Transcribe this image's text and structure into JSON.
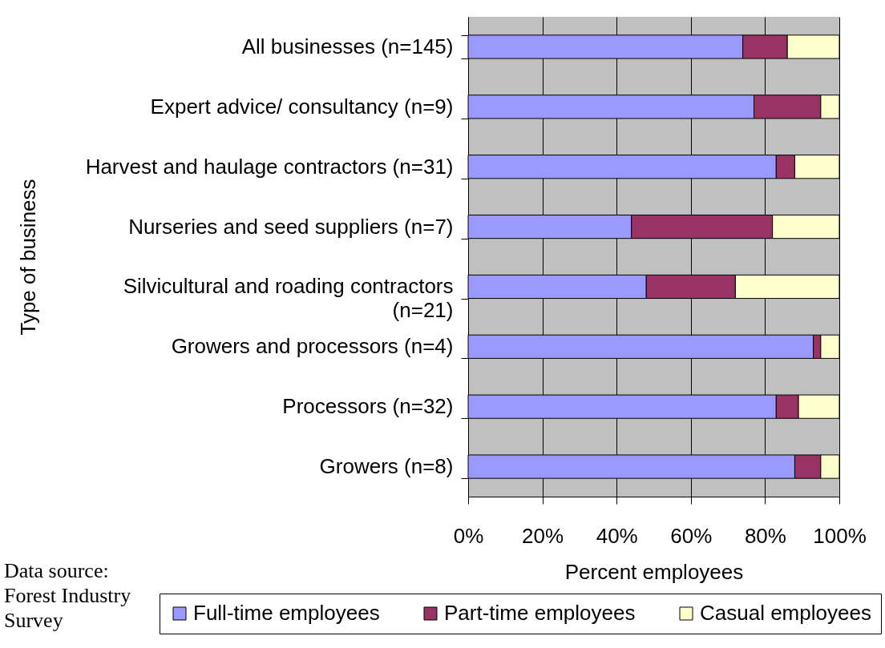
{
  "chart_data": {
    "type": "bar",
    "orientation": "horizontal",
    "stacked": true,
    "ylabel": "Type of business",
    "xlabel": "Percent employees",
    "categories": [
      "All businesses (n=145)",
      "Expert advice/ consultancy (n=9)",
      "Harvest and haulage contractors (n=31)",
      "Nurseries and seed suppliers (n=7)",
      "Silvicultural and roading contractors (n=21)",
      "Growers and processors (n=4)",
      "Processors (n=32)",
      "Growers (n=8)"
    ],
    "series": [
      {
        "name": "Full-time employees",
        "color": "#9999ff",
        "values": [
          74,
          77,
          83,
          44,
          48,
          93,
          83,
          88
        ]
      },
      {
        "name": "Part-time employees",
        "color": "#993366",
        "values": [
          12,
          18,
          5,
          38,
          24,
          2,
          6,
          7
        ]
      },
      {
        "name": "Casual employees",
        "color": "#ffffcc",
        "values": [
          14,
          5,
          12,
          18,
          28,
          5,
          11,
          5
        ]
      }
    ],
    "xlim": [
      0,
      100
    ],
    "xticks": [
      {
        "value": 0,
        "label": "0%"
      },
      {
        "value": 20,
        "label": "20%"
      },
      {
        "value": 40,
        "label": "40%"
      },
      {
        "value": 60,
        "label": "60%"
      },
      {
        "value": 80,
        "label": "80%"
      },
      {
        "value": 100,
        "label": "100%"
      }
    ],
    "grid": "x",
    "legend": "bottom",
    "annotations": [
      "Data source: Forest Industry Survey"
    ]
  }
}
